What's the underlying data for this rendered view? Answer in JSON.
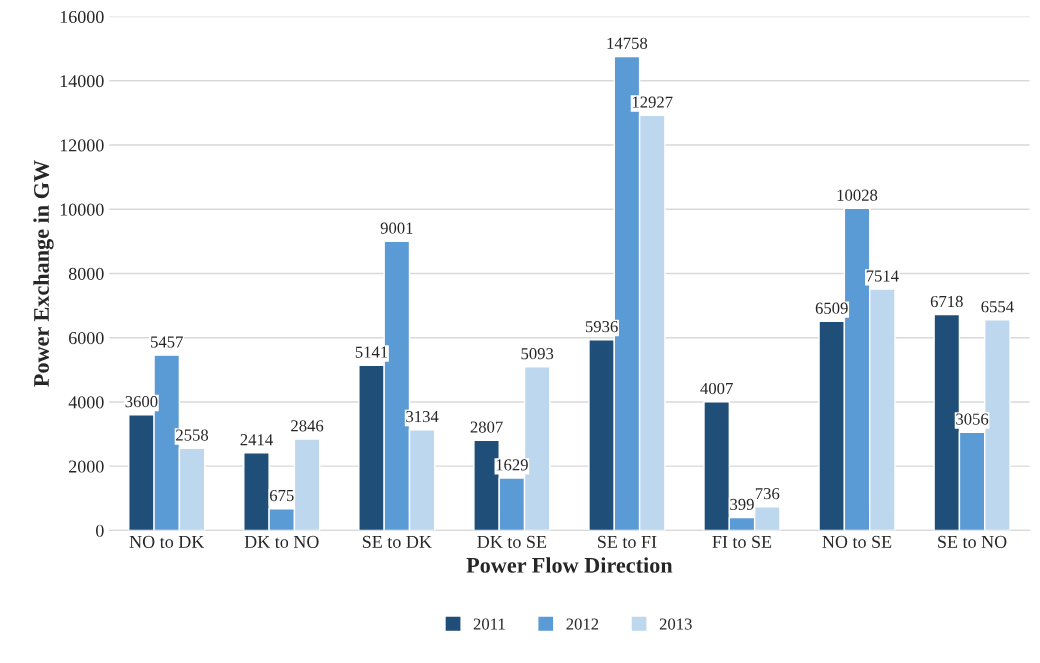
{
  "chart_data": {
    "type": "bar",
    "xlabel": "Power Flow Direction",
    "ylabel": "Power Exchange in GW",
    "categories": [
      "NO to DK",
      "DK to NO",
      "SE to DK",
      "DK to SE",
      "SE to FI",
      "FI to SE",
      "NO to SE",
      "SE to NO"
    ],
    "series": [
      {
        "name": "2011",
        "color": "#1f4e79",
        "values": [
          3600,
          2414,
          5141,
          2807,
          5936,
          4007,
          6509,
          6718
        ]
      },
      {
        "name": "2012",
        "color": "#5b9bd5",
        "values": [
          5457,
          675,
          9001,
          1629,
          14758,
          399,
          10028,
          3056
        ]
      },
      {
        "name": "2013",
        "color": "#bdd7ee",
        "values": [
          2558,
          2846,
          3134,
          5093,
          12927,
          736,
          7514,
          6554
        ]
      }
    ],
    "ylim": [
      0,
      16000
    ],
    "yticks": [
      0,
      2000,
      4000,
      6000,
      8000,
      10000,
      12000,
      14000,
      16000
    ],
    "grid": "y",
    "legend": "bottom",
    "data_labels": true
  }
}
